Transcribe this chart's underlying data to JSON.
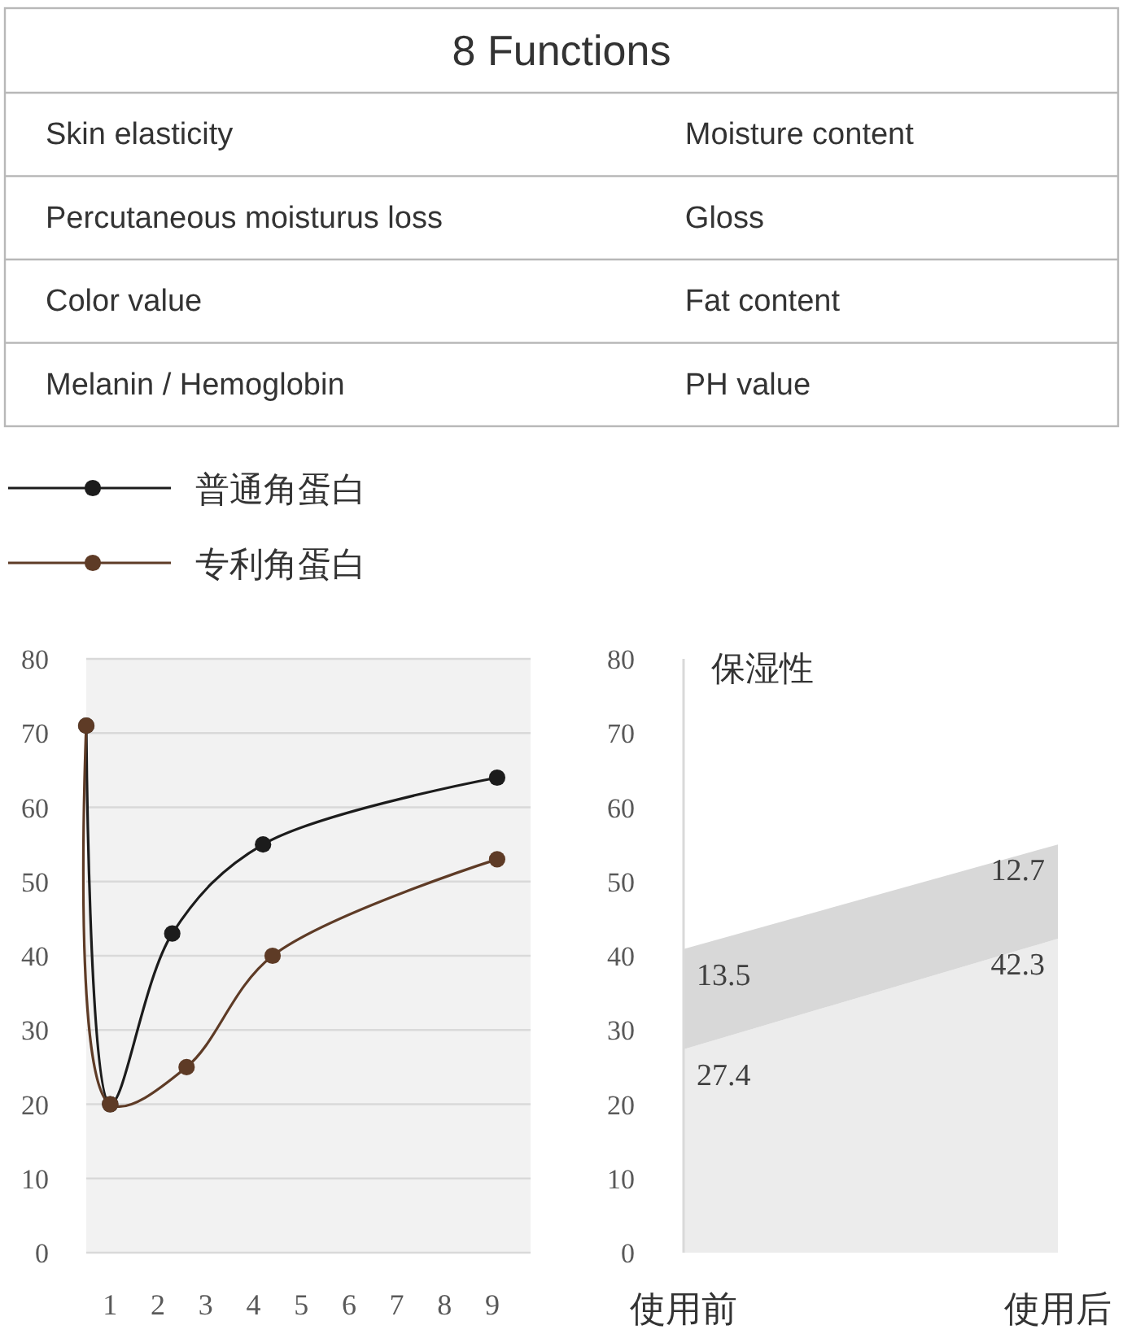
{
  "chart_data": [
    {
      "type": "other",
      "title": "8 Functions",
      "annotations": [
        "Skin elasticity",
        "Moisture content",
        "Percutaneous moisturus loss",
        "Gloss",
        "Color value",
        "Fat content",
        "Melanin / Hemoglobin",
        "PH value"
      ]
    },
    {
      "type": "line",
      "series": [
        {
          "name": "普通角蛋白",
          "color": "#1c1c1c",
          "x": [
            0.5,
            1,
            2.3,
            4.2,
            9.1
          ],
          "values": [
            71,
            20,
            43,
            55,
            64
          ]
        },
        {
          "name": "专利角蛋白",
          "color": "#5e3b26",
          "x": [
            0.5,
            1,
            2.6,
            4.4,
            9.1
          ],
          "values": [
            71,
            20,
            25,
            40,
            53
          ]
        }
      ],
      "xlim": [
        0.5,
        9.8
      ],
      "xticks": [
        1,
        2,
        3,
        4,
        5,
        6,
        7,
        8,
        9
      ],
      "ylim": [
        0,
        80
      ],
      "yticks": [
        0,
        10,
        20,
        30,
        40,
        50,
        60,
        70,
        80
      ],
      "grid": "y",
      "legend": "top left",
      "marker": "circle"
    },
    {
      "type": "area",
      "title": "保湿性",
      "categories": [
        "使用前",
        "使用后"
      ],
      "stacked": true,
      "series": [
        {
          "color": "#ececec",
          "values": [
            27.4,
            42.3
          ]
        },
        {
          "color": "#d8d8d8",
          "values": [
            13.5,
            12.7
          ]
        }
      ],
      "ylim": [
        0,
        80
      ],
      "yticks": [
        0,
        10,
        20,
        30,
        40,
        50,
        60,
        70,
        80
      ],
      "data_labels": true
    }
  ]
}
